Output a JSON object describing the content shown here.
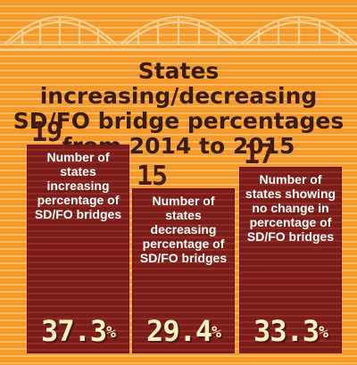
{
  "chart_data": {
    "type": "bar",
    "title": "States increasing/decreasing SD/FO bridge percentages from 2014 to 2015",
    "categories": [
      "Number of states increasing percentage of SD/FO bridges",
      "Number of states decreasing percentage of SD/FO bridges",
      "Number of states showing no change in percentage of SD/FO bridges"
    ],
    "values": [
      19,
      15,
      17
    ],
    "percent_labels": [
      "37.3",
      "29.4",
      "33.3"
    ],
    "percent_sign": "%",
    "colors": {
      "background": "#f39a2a",
      "bar": "#7a1c1a",
      "title": "#3a1c12",
      "count": "#4a1a14",
      "percent": "#fff3c2"
    }
  }
}
